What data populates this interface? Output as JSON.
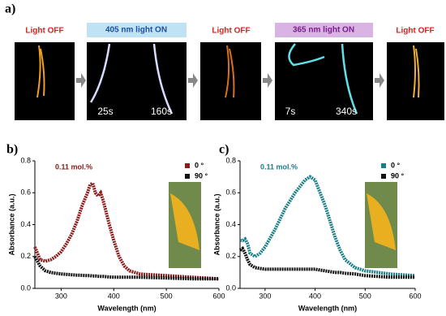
{
  "panel_a": {
    "label": "a)",
    "stages": [
      {
        "label": "Light OFF"
      },
      {
        "label": "405 nm light ON",
        "times": [
          "25s",
          "160s"
        ]
      },
      {
        "label": "Light OFF"
      },
      {
        "label": "365 nm light ON",
        "times": [
          "7s",
          "340s"
        ]
      },
      {
        "label": "Light OFF"
      }
    ]
  },
  "chart_data": [
    {
      "type": "line",
      "panel_label": "b)",
      "annotation": "0.11 mol.%",
      "xlabel": "Wavelength (nm)",
      "ylabel": "Absorbance (a.u.)",
      "x": [
        250,
        255,
        260,
        270,
        280,
        290,
        300,
        310,
        320,
        330,
        340,
        350,
        355,
        360,
        365,
        370,
        375,
        380,
        390,
        400,
        410,
        420,
        430,
        450,
        500,
        550,
        600
      ],
      "series": [
        {
          "name": "0 °",
          "color": "#8b1a1a",
          "values": [
            0.26,
            0.22,
            0.18,
            0.17,
            0.18,
            0.2,
            0.23,
            0.28,
            0.34,
            0.42,
            0.52,
            0.6,
            0.65,
            0.66,
            0.6,
            0.58,
            0.6,
            0.55,
            0.42,
            0.3,
            0.2,
            0.14,
            0.11,
            0.09,
            0.08,
            0.07,
            0.06
          ]
        },
        {
          "name": "90 °",
          "color": "#111111",
          "values": [
            0.2,
            0.17,
            0.14,
            0.11,
            0.1,
            0.095,
            0.09,
            0.088,
            0.085,
            0.083,
            0.082,
            0.08,
            0.08,
            0.078,
            0.078,
            0.076,
            0.075,
            0.075,
            0.072,
            0.07,
            0.07,
            0.07,
            0.07,
            0.07,
            0.065,
            0.06,
            0.06
          ]
        }
      ],
      "xlim": [
        250,
        600
      ],
      "xticks": [
        300,
        400,
        500,
        600
      ],
      "ylim": [
        0,
        0.8
      ],
      "yticks": [
        {
          "value": 0,
          "label": "0.0"
        },
        0.2,
        0.4,
        0.6,
        0.8
      ],
      "legend": "upper right",
      "grid": false
    },
    {
      "type": "line",
      "panel_label": "c)",
      "annotation": "0.11 mol.%",
      "xlabel": "Wavelength (nm)",
      "ylabel": "Absorbance (a.u.)",
      "x": [
        250,
        255,
        260,
        265,
        270,
        280,
        290,
        300,
        320,
        340,
        360,
        380,
        390,
        400,
        410,
        420,
        430,
        440,
        450,
        460,
        480,
        500,
        550,
        600
      ],
      "series": [
        {
          "name": "0 °",
          "color": "#1a7f86",
          "values": [
            0.3,
            0.3,
            0.31,
            0.28,
            0.22,
            0.2,
            0.22,
            0.26,
            0.37,
            0.5,
            0.6,
            0.68,
            0.7,
            0.68,
            0.6,
            0.52,
            0.42,
            0.32,
            0.24,
            0.18,
            0.13,
            0.11,
            0.09,
            0.08
          ]
        },
        {
          "name": "90 °",
          "color": "#111111",
          "values": [
            0.24,
            0.25,
            0.22,
            0.18,
            0.15,
            0.13,
            0.125,
            0.12,
            0.12,
            0.12,
            0.12,
            0.12,
            0.12,
            0.12,
            0.115,
            0.11,
            0.105,
            0.1,
            0.1,
            0.095,
            0.09,
            0.08,
            0.07,
            0.07
          ]
        }
      ],
      "xlim": [
        250,
        600
      ],
      "xticks": [
        300,
        400,
        500,
        600
      ],
      "ylim": [
        0,
        0.8
      ],
      "yticks": [
        {
          "value": 0,
          "label": "0.0"
        },
        0.2,
        0.4,
        0.6,
        0.8
      ],
      "legend": "upper right",
      "grid": false
    }
  ]
}
